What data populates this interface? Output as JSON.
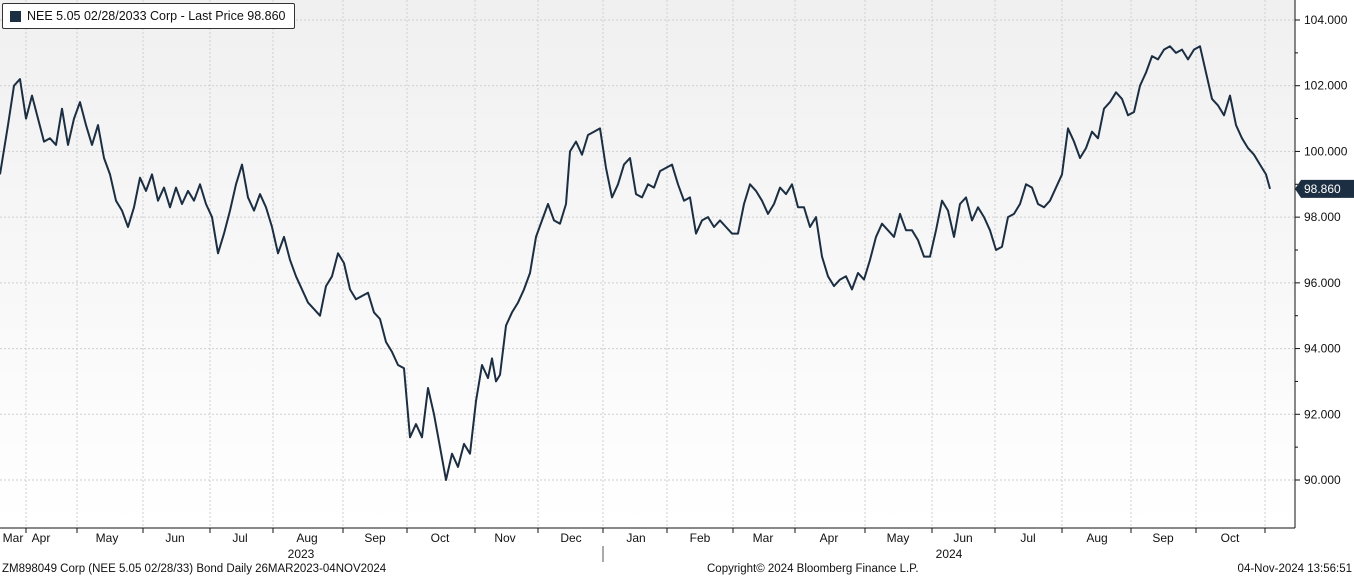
{
  "legend": {
    "label": "NEE 5.05 02/28/2033 Corp - Last Price 98.860",
    "color": "#1c2e42"
  },
  "footer": {
    "left": "ZM898049 Corp (NEE 5.05 02/28/33) Bond  Daily 26MAR2023-04NOV2024",
    "center": "Copyright© 2024 Bloomberg Finance L.P.",
    "right": "04-Nov-2024 13:56:51"
  },
  "colors": {
    "line": "#1c2e42",
    "grid": "#cfcfcf",
    "background_top": "#f0f0f0",
    "background_bottom": "#ffffff"
  },
  "chart_data": {
    "type": "line",
    "y_axis_side": "right",
    "ylim": [
      88.8,
      104.6
    ],
    "yticks": [
      "104.000",
      "102.000",
      "100.000",
      "98.000",
      "96.000",
      "94.000",
      "92.000",
      "90.000"
    ],
    "x_month_labels": [
      "Mar",
      "Apr",
      "May",
      "Jun",
      "Jul",
      "Aug",
      "Sep",
      "Oct",
      "Nov",
      "Dec",
      "Jan",
      "Feb",
      "Mar",
      "Apr",
      "May",
      "Jun",
      "Jul",
      "Aug",
      "Sep",
      "Oct"
    ],
    "x_year_labels": [
      "2023",
      "2024"
    ],
    "last_value_label": "98.860",
    "series": [
      {
        "values": [
          [
            0,
            99.3
          ],
          [
            8,
            100.8
          ],
          [
            14,
            102.0
          ],
          [
            20,
            102.2
          ],
          [
            26,
            101.0
          ],
          [
            32,
            101.7
          ],
          [
            38,
            101.0
          ],
          [
            44,
            100.3
          ],
          [
            50,
            100.4
          ],
          [
            56,
            100.2
          ],
          [
            62,
            101.3
          ],
          [
            68,
            100.2
          ],
          [
            74,
            101.0
          ],
          [
            80,
            101.5
          ],
          [
            86,
            100.8
          ],
          [
            92,
            100.2
          ],
          [
            98,
            100.8
          ],
          [
            104,
            99.8
          ],
          [
            110,
            99.3
          ],
          [
            116,
            98.5
          ],
          [
            122,
            98.2
          ],
          [
            128,
            97.7
          ],
          [
            134,
            98.3
          ],
          [
            140,
            99.2
          ],
          [
            146,
            98.8
          ],
          [
            152,
            99.3
          ],
          [
            158,
            98.5
          ],
          [
            164,
            98.9
          ],
          [
            170,
            98.3
          ],
          [
            176,
            98.9
          ],
          [
            182,
            98.4
          ],
          [
            188,
            98.8
          ],
          [
            194,
            98.5
          ],
          [
            200,
            99.0
          ],
          [
            206,
            98.4
          ],
          [
            212,
            98.0
          ],
          [
            218,
            96.9
          ],
          [
            224,
            97.5
          ],
          [
            230,
            98.2
          ],
          [
            236,
            99.0
          ],
          [
            242,
            99.6
          ],
          [
            248,
            98.6
          ],
          [
            254,
            98.2
          ],
          [
            260,
            98.7
          ],
          [
            266,
            98.3
          ],
          [
            272,
            97.7
          ],
          [
            278,
            96.9
          ],
          [
            284,
            97.4
          ],
          [
            290,
            96.7
          ],
          [
            296,
            96.2
          ],
          [
            302,
            95.8
          ],
          [
            308,
            95.4
          ],
          [
            314,
            95.2
          ],
          [
            320,
            95.0
          ],
          [
            326,
            95.9
          ],
          [
            332,
            96.2
          ],
          [
            338,
            96.9
          ],
          [
            344,
            96.6
          ],
          [
            350,
            95.8
          ],
          [
            356,
            95.5
          ],
          [
            362,
            95.6
          ],
          [
            368,
            95.7
          ],
          [
            374,
            95.1
          ],
          [
            380,
            94.9
          ],
          [
            386,
            94.2
          ],
          [
            392,
            93.9
          ],
          [
            398,
            93.5
          ],
          [
            404,
            93.4
          ],
          [
            410,
            91.3
          ],
          [
            416,
            91.7
          ],
          [
            422,
            91.3
          ],
          [
            428,
            92.8
          ],
          [
            434,
            92.0
          ],
          [
            440,
            91.0
          ],
          [
            446,
            90.0
          ],
          [
            452,
            90.8
          ],
          [
            458,
            90.4
          ],
          [
            464,
            91.1
          ],
          [
            470,
            90.8
          ],
          [
            476,
            92.4
          ],
          [
            482,
            93.5
          ],
          [
            488,
            93.1
          ],
          [
            492,
            93.7
          ],
          [
            496,
            93.0
          ],
          [
            500,
            93.2
          ],
          [
            506,
            94.7
          ],
          [
            512,
            95.1
          ],
          [
            518,
            95.4
          ],
          [
            524,
            95.8
          ],
          [
            530,
            96.3
          ],
          [
            536,
            97.4
          ],
          [
            542,
            97.9
          ],
          [
            548,
            98.4
          ],
          [
            554,
            97.9
          ],
          [
            560,
            97.8
          ],
          [
            566,
            98.4
          ],
          [
            570,
            100.0
          ],
          [
            576,
            100.3
          ],
          [
            582,
            99.9
          ],
          [
            588,
            100.5
          ],
          [
            594,
            100.6
          ],
          [
            600,
            100.7
          ],
          [
            606,
            99.5
          ],
          [
            612,
            98.6
          ],
          [
            618,
            99.0
          ],
          [
            624,
            99.6
          ],
          [
            630,
            99.8
          ],
          [
            636,
            98.7
          ],
          [
            642,
            98.6
          ],
          [
            648,
            99.0
          ],
          [
            654,
            98.9
          ],
          [
            660,
            99.4
          ],
          [
            666,
            99.5
          ],
          [
            672,
            99.6
          ],
          [
            678,
            99.0
          ],
          [
            684,
            98.5
          ],
          [
            690,
            98.6
          ],
          [
            696,
            97.5
          ],
          [
            702,
            97.9
          ],
          [
            708,
            98.0
          ],
          [
            714,
            97.7
          ],
          [
            720,
            97.9
          ],
          [
            726,
            97.7
          ],
          [
            732,
            97.5
          ],
          [
            738,
            97.5
          ],
          [
            744,
            98.4
          ],
          [
            750,
            99.0
          ],
          [
            756,
            98.8
          ],
          [
            762,
            98.5
          ],
          [
            768,
            98.1
          ],
          [
            774,
            98.4
          ],
          [
            780,
            98.9
          ],
          [
            786,
            98.7
          ],
          [
            792,
            99.0
          ],
          [
            798,
            98.3
          ],
          [
            804,
            98.3
          ],
          [
            810,
            97.7
          ],
          [
            816,
            98.0
          ],
          [
            822,
            96.8
          ],
          [
            828,
            96.2
          ],
          [
            834,
            95.9
          ],
          [
            840,
            96.1
          ],
          [
            846,
            96.2
          ],
          [
            852,
            95.8
          ],
          [
            858,
            96.3
          ],
          [
            864,
            96.1
          ],
          [
            870,
            96.7
          ],
          [
            876,
            97.4
          ],
          [
            882,
            97.8
          ],
          [
            888,
            97.6
          ],
          [
            894,
            97.4
          ],
          [
            900,
            98.1
          ],
          [
            906,
            97.6
          ],
          [
            912,
            97.6
          ],
          [
            918,
            97.3
          ],
          [
            924,
            96.8
          ],
          [
            930,
            96.8
          ],
          [
            936,
            97.6
          ],
          [
            942,
            98.5
          ],
          [
            948,
            98.2
          ],
          [
            954,
            97.4
          ],
          [
            960,
            98.4
          ],
          [
            966,
            98.6
          ],
          [
            972,
            97.9
          ],
          [
            978,
            98.3
          ],
          [
            984,
            98.0
          ],
          [
            990,
            97.6
          ],
          [
            996,
            97.0
          ],
          [
            1002,
            97.1
          ],
          [
            1008,
            98.0
          ],
          [
            1014,
            98.1
          ],
          [
            1020,
            98.4
          ],
          [
            1026,
            99.0
          ],
          [
            1032,
            98.9
          ],
          [
            1038,
            98.4
          ],
          [
            1044,
            98.3
          ],
          [
            1050,
            98.5
          ],
          [
            1056,
            98.9
          ],
          [
            1062,
            99.3
          ],
          [
            1068,
            100.7
          ],
          [
            1074,
            100.3
          ],
          [
            1080,
            99.8
          ],
          [
            1086,
            100.1
          ],
          [
            1092,
            100.6
          ],
          [
            1098,
            100.4
          ],
          [
            1104,
            101.3
          ],
          [
            1110,
            101.5
          ],
          [
            1116,
            101.8
          ],
          [
            1122,
            101.6
          ],
          [
            1128,
            101.1
          ],
          [
            1134,
            101.2
          ],
          [
            1140,
            102.0
          ],
          [
            1146,
            102.4
          ],
          [
            1152,
            102.9
          ],
          [
            1158,
            102.8
          ],
          [
            1164,
            103.1
          ],
          [
            1170,
            103.2
          ],
          [
            1176,
            103.0
          ],
          [
            1182,
            103.1
          ],
          [
            1188,
            102.8
          ],
          [
            1194,
            103.1
          ],
          [
            1200,
            103.2
          ],
          [
            1206,
            102.4
          ],
          [
            1212,
            101.6
          ],
          [
            1218,
            101.4
          ],
          [
            1224,
            101.1
          ],
          [
            1230,
            101.7
          ],
          [
            1236,
            100.8
          ],
          [
            1242,
            100.4
          ],
          [
            1248,
            100.1
          ],
          [
            1254,
            99.9
          ],
          [
            1260,
            99.6
          ],
          [
            1266,
            99.3
          ],
          [
            1270,
            98.86
          ]
        ]
      }
    ]
  }
}
